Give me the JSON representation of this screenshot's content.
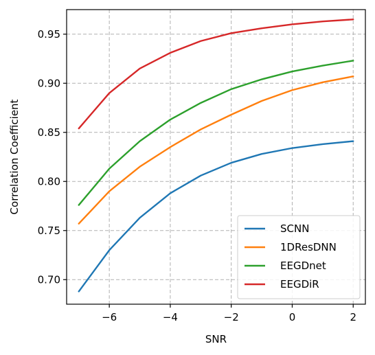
{
  "chart_data": {
    "type": "line",
    "xlabel": "SNR",
    "ylabel": "Correlation Coefficient",
    "xlim": [
      -7.4,
      2.4
    ],
    "ylim": [
      0.675,
      0.975
    ],
    "xticks": [
      -6,
      -4,
      -2,
      0,
      2
    ],
    "xtick_labels": [
      "−6",
      "−4",
      "−2",
      "0",
      "2"
    ],
    "yticks": [
      0.7,
      0.75,
      0.8,
      0.85,
      0.9,
      0.95
    ],
    "ytick_labels": [
      "0.70",
      "0.75",
      "0.80",
      "0.85",
      "0.90",
      "0.95"
    ],
    "grid": true,
    "legend_position": "lower-right",
    "x": [
      -7,
      -6,
      -5,
      -4,
      -3,
      -2,
      -1,
      0,
      1,
      2
    ],
    "series": [
      {
        "name": "SCNN",
        "color": "#1f77b4",
        "values": [
          0.688,
          0.73,
          0.763,
          0.788,
          0.806,
          0.819,
          0.828,
          0.834,
          0.838,
          0.841
        ]
      },
      {
        "name": "1DResDNN",
        "color": "#ff7f0e",
        "values": [
          0.757,
          0.79,
          0.815,
          0.835,
          0.853,
          0.868,
          0.882,
          0.893,
          0.901,
          0.907
        ]
      },
      {
        "name": "EEGDnet",
        "color": "#2ca02c",
        "values": [
          0.776,
          0.813,
          0.841,
          0.863,
          0.88,
          0.894,
          0.904,
          0.912,
          0.918,
          0.923
        ]
      },
      {
        "name": "EEGDiR",
        "color": "#d62728",
        "values": [
          0.854,
          0.89,
          0.915,
          0.931,
          0.943,
          0.951,
          0.956,
          0.96,
          0.963,
          0.965
        ]
      }
    ]
  }
}
